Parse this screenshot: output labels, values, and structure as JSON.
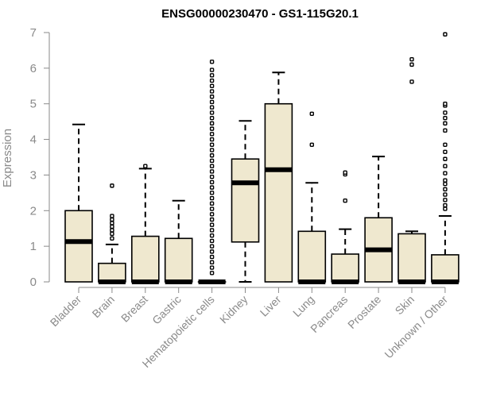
{
  "chart_data": {
    "type": "boxplot",
    "title": "ENSG00000230470 - GS1-115G20.1",
    "ylabel": "Expression",
    "ylim": [
      0,
      7
    ],
    "yticks": [
      0,
      1,
      2,
      3,
      4,
      5,
      6,
      7
    ],
    "box_color": "#efe8cf",
    "categories": [
      "Bladder",
      "Brain",
      "Breast",
      "Gastric",
      "Hematopoietic cells",
      "Kidney",
      "Liver",
      "Lung",
      "Pancreas",
      "Prostate",
      "Skin",
      "Unknown / Other"
    ],
    "boxes": [
      {
        "q1": 0,
        "median": 1.13,
        "q3": 2.0,
        "whisker_low": 0,
        "whisker_high": 4.42,
        "outliers": []
      },
      {
        "q1": 0,
        "median": 0,
        "q3": 0.52,
        "whisker_low": 0,
        "whisker_high": 1.05,
        "outliers": [
          1.22,
          1.35,
          1.45,
          1.55,
          1.65,
          1.75,
          1.85,
          2.7
        ]
      },
      {
        "q1": 0,
        "median": 0,
        "q3": 1.28,
        "whisker_low": 0,
        "whisker_high": 3.18,
        "outliers": [
          3.25
        ]
      },
      {
        "q1": 0,
        "median": 0,
        "q3": 1.22,
        "whisker_low": 0,
        "whisker_high": 2.28,
        "outliers": []
      },
      {
        "q1": 0,
        "median": 0,
        "q3": 0,
        "whisker_low": 0,
        "whisker_high": 0,
        "outliers": [
          0.25,
          0.4,
          0.55,
          0.7,
          0.85,
          1.0,
          1.15,
          1.3,
          1.45,
          1.6,
          1.75,
          1.9,
          2.05,
          2.2,
          2.35,
          2.5,
          2.65,
          2.8,
          2.95,
          3.1,
          3.25,
          3.4,
          3.55,
          3.7,
          3.85,
          4.0,
          4.15,
          4.3,
          4.45,
          4.6,
          4.75,
          4.9,
          5.05,
          5.2,
          5.35,
          5.5,
          5.65,
          5.8,
          5.95,
          6.18
        ]
      },
      {
        "q1": 1.12,
        "median": 2.78,
        "q3": 3.45,
        "whisker_low": 0,
        "whisker_high": 4.52,
        "outliers": []
      },
      {
        "q1": 0,
        "median": 3.15,
        "q3": 5.0,
        "whisker_low": 0,
        "whisker_high": 5.88,
        "outliers": []
      },
      {
        "q1": 0,
        "median": 0,
        "q3": 1.42,
        "whisker_low": 0,
        "whisker_high": 2.78,
        "outliers": [
          3.85,
          4.72
        ]
      },
      {
        "q1": 0,
        "median": 0,
        "q3": 0.78,
        "whisker_low": 0,
        "whisker_high": 1.48,
        "outliers": [
          2.28,
          3.02,
          3.07
        ]
      },
      {
        "q1": 0,
        "median": 0.9,
        "q3": 1.8,
        "whisker_low": 0,
        "whisker_high": 3.52,
        "outliers": []
      },
      {
        "q1": 0,
        "median": 0,
        "q3": 1.35,
        "whisker_low": 0,
        "whisker_high": 1.42,
        "outliers": [
          5.62,
          6.1,
          6.25
        ]
      },
      {
        "q1": 0,
        "median": 0,
        "q3": 0.76,
        "whisker_low": 0,
        "whisker_high": 1.85,
        "outliers": [
          2.05,
          2.15,
          2.3,
          2.45,
          2.6,
          2.75,
          2.85,
          3.05,
          3.25,
          3.45,
          3.65,
          3.85,
          4.25,
          4.45,
          4.6,
          4.75,
          4.95,
          5.0,
          6.95
        ]
      }
    ]
  }
}
